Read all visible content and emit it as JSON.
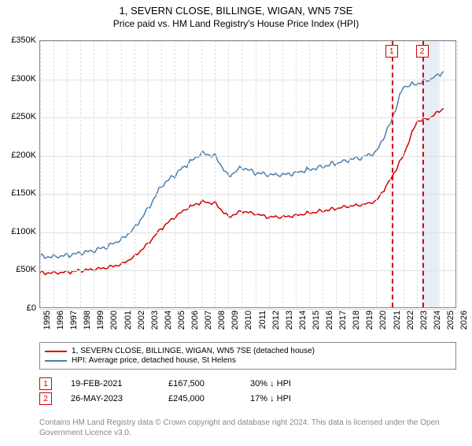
{
  "title": "1, SEVERN CLOSE, BILLINGE, WIGAN, WN5 7SE",
  "subtitle": "Price paid vs. HM Land Registry's House Price Index (HPI)",
  "chart": {
    "type": "line",
    "background_color": "#ffffff",
    "grid_color": "#e0e0e0",
    "border_color": "#888888",
    "x_axis": {
      "min": 1995,
      "max": 2026,
      "ticks": [
        1995,
        1996,
        1997,
        1998,
        1999,
        2000,
        2001,
        2002,
        2003,
        2004,
        2005,
        2006,
        2007,
        2008,
        2009,
        2010,
        2011,
        2012,
        2013,
        2014,
        2015,
        2016,
        2017,
        2018,
        2019,
        2020,
        2021,
        2022,
        2023,
        2024,
        2025,
        2026
      ],
      "tick_fontsize": 11,
      "tick_rotate_deg": -90
    },
    "y_axis": {
      "min": 0,
      "max": 350000,
      "ticks": [
        0,
        50000,
        100000,
        150000,
        200000,
        250000,
        300000,
        350000
      ],
      "tick_labels": [
        "£0",
        "£50K",
        "£100K",
        "£150K",
        "£200K",
        "£250K",
        "£300K",
        "£350K"
      ],
      "tick_fontsize": 11
    },
    "series": [
      {
        "id": "property",
        "label": "1, SEVERN CLOSE, BILLINGE, WIGAN, WN5 7SE (detached house)",
        "color": "#d40000",
        "line_width": 1.5,
        "data": [
          [
            1995,
            47000
          ],
          [
            1996,
            47000
          ],
          [
            1997,
            48000
          ],
          [
            1998,
            50000
          ],
          [
            1999,
            51500
          ],
          [
            2000,
            54000
          ],
          [
            2001,
            58000
          ],
          [
            2002,
            68000
          ],
          [
            2003,
            85000
          ],
          [
            2004,
            105000
          ],
          [
            2005,
            120000
          ],
          [
            2006,
            132000
          ],
          [
            2007,
            140000
          ],
          [
            2008,
            138000
          ],
          [
            2009,
            120000
          ],
          [
            2010,
            128000
          ],
          [
            2011,
            124000
          ],
          [
            2012,
            120000
          ],
          [
            2013,
            120000
          ],
          [
            2014,
            122000
          ],
          [
            2015,
            125000
          ],
          [
            2016,
            128000
          ],
          [
            2017,
            131000
          ],
          [
            2018,
            134000
          ],
          [
            2019,
            136000
          ],
          [
            2020,
            141000
          ],
          [
            2021,
            167500
          ],
          [
            2022,
            200000
          ],
          [
            2023,
            245000
          ],
          [
            2023.5,
            247000
          ],
          [
            2024,
            250000
          ],
          [
            2025,
            262000
          ]
        ]
      },
      {
        "id": "hpi",
        "label": "HPI: Average price, detached house, St Helens",
        "color": "#4a7fb0",
        "line_width": 1.5,
        "data": [
          [
            1995,
            68000
          ],
          [
            1996,
            68000
          ],
          [
            1997,
            70000
          ],
          [
            1998,
            73000
          ],
          [
            1999,
            76000
          ],
          [
            2000,
            82000
          ],
          [
            2001,
            90000
          ],
          [
            2002,
            105000
          ],
          [
            2003,
            130000
          ],
          [
            2004,
            160000
          ],
          [
            2005,
            175000
          ],
          [
            2006,
            190000
          ],
          [
            2007,
            203000
          ],
          [
            2008,
            200000
          ],
          [
            2009,
            173000
          ],
          [
            2010,
            185000
          ],
          [
            2011,
            178000
          ],
          [
            2012,
            175000
          ],
          [
            2013,
            175000
          ],
          [
            2014,
            178000
          ],
          [
            2015,
            182000
          ],
          [
            2016,
            186000
          ],
          [
            2017,
            190000
          ],
          [
            2018,
            195000
          ],
          [
            2019,
            198000
          ],
          [
            2020,
            205000
          ],
          [
            2021,
            240000
          ],
          [
            2022,
            290000
          ],
          [
            2023,
            294000
          ],
          [
            2024,
            300000
          ],
          [
            2025,
            310000
          ]
        ]
      }
    ],
    "events": [
      {
        "n": "1",
        "x": 2021.13,
        "color": "#d40000",
        "date": "19-FEB-2021",
        "price": "£167,500",
        "delta": "30% ↓ HPI"
      },
      {
        "n": "2",
        "x": 2023.4,
        "color": "#d40000",
        "date": "26-MAY-2023",
        "price": "£245,000",
        "delta": "17% ↓ HPI"
      }
    ],
    "highlight_band": {
      "x_from": 2023.4,
      "x_to": 2024.7,
      "fill": "#e8eef8"
    }
  },
  "legend": {
    "border_color": "#888888",
    "fontsize": 10
  },
  "footnote": "Contains HM Land Registry data © Crown copyright and database right 2024. This data is licensed under the Open Government Licence v3.0."
}
